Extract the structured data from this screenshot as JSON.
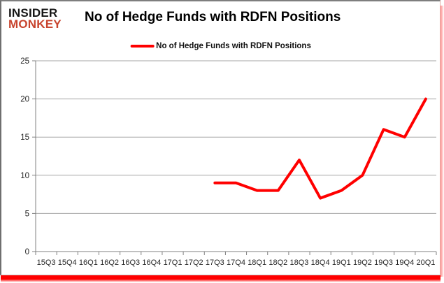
{
  "logo": {
    "line1": "INSIDER",
    "line2": "MONKEY"
  },
  "title": "No of Hedge Funds with RDFN Positions",
  "legend": {
    "label": "No of Hedge Funds with RDFN Positions",
    "swatch_color": "#ff0000"
  },
  "colors": {
    "line_red": "#ff0000",
    "logo_red": "#c8452f",
    "shadow_red": "#ff0000",
    "gridline": "#a6a6a6",
    "axis": "#808080",
    "tick_text": "#262626"
  },
  "chart_data": {
    "type": "line",
    "title": "No of Hedge Funds with RDFN Positions",
    "categories": [
      "15Q3",
      "15Q4",
      "16Q1",
      "16Q2",
      "16Q3",
      "16Q4",
      "17Q1",
      "17Q2",
      "17Q3",
      "17Q4",
      "18Q1",
      "18Q2",
      "18Q3",
      "18Q4",
      "19Q1",
      "19Q2",
      "19Q3",
      "19Q4",
      "20Q1"
    ],
    "series": [
      {
        "name": "No of Hedge Funds with RDFN Positions",
        "color": "#ff0000",
        "values": [
          null,
          null,
          null,
          null,
          null,
          null,
          null,
          null,
          9,
          9,
          8,
          8,
          12,
          7,
          8,
          10,
          16,
          15,
          20
        ]
      }
    ],
    "xlabel": "",
    "ylabel": "",
    "ylim": [
      0,
      25
    ],
    "yticks": [
      0,
      5,
      10,
      15,
      20,
      25
    ],
    "grid": "horizontal",
    "legend_position": "top-center"
  }
}
